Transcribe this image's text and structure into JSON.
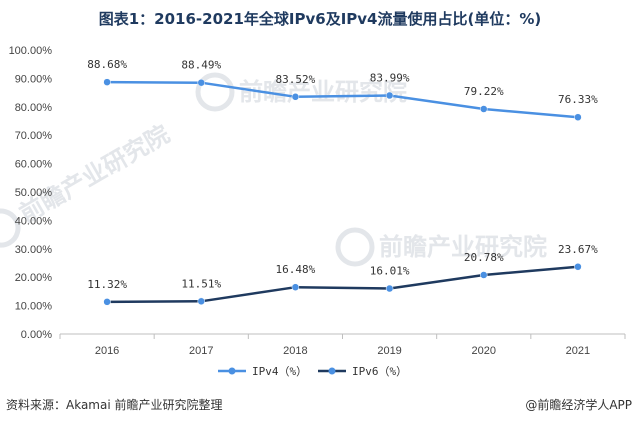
{
  "title": "图表1：2016-2021年全球IPv6及IPv4流量使用占比(单位：%)",
  "footer": {
    "source": "资料来源：Akamai 前瞻产业研究院整理",
    "credit": "@前瞻经济学人APP"
  },
  "watermark": {
    "text": "前瞻产业研究院",
    "color": "#e3e6ea"
  },
  "chart_data": {
    "type": "line",
    "title": "图表1：2016-2021年全球IPv6及IPv4流量使用占比(单位：%)",
    "categories": [
      "2016",
      "2017",
      "2018",
      "2019",
      "2020",
      "2021"
    ],
    "ylim": [
      0,
      100
    ],
    "yticks": [
      "0.00%",
      "10.00%",
      "20.00%",
      "30.00%",
      "40.00%",
      "50.00%",
      "60.00%",
      "70.00%",
      "80.00%",
      "90.00%",
      "100.00%"
    ],
    "grid": false,
    "legend_position": "bottom-center",
    "series": [
      {
        "name": "IPv4（%）",
        "values": [
          88.68,
          88.49,
          83.52,
          83.99,
          79.22,
          76.33
        ],
        "labels": [
          "88.68%",
          "88.49%",
          "83.52%",
          "83.99%",
          "79.22%",
          "76.33%"
        ],
        "color": "#4a90e2"
      },
      {
        "name": "IPv6（%）",
        "values": [
          11.32,
          11.51,
          16.48,
          16.01,
          20.78,
          23.67
        ],
        "labels": [
          "11.32%",
          "11.51%",
          "16.48%",
          "16.01%",
          "20.78%",
          "23.67%"
        ],
        "color": "#1f3a5f"
      }
    ]
  }
}
